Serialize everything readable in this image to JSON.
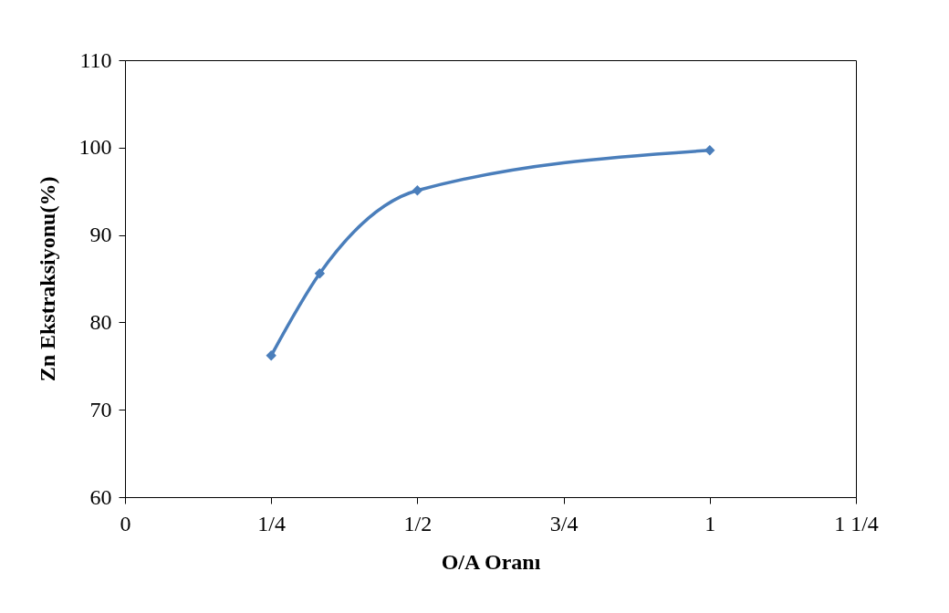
{
  "chart_data": {
    "type": "line",
    "xlabel": "O/A Oranı",
    "ylabel": "Zn Ekstraksiyonu(%)",
    "x": [
      0.25,
      0.333,
      0.5,
      1
    ],
    "series": [
      {
        "color": "#4a7ebb",
        "values": [
          76.2,
          85.6,
          95.1,
          99.7
        ]
      }
    ],
    "xlim": [
      0,
      1.25
    ],
    "xticks": [
      0,
      {
        "value": 0.25,
        "label": "1/4"
      },
      {
        "value": 0.5,
        "label": "1/2"
      },
      {
        "value": 0.75,
        "label": "3/4"
      },
      1,
      {
        "value": 1.25,
        "label": "1 1/4"
      }
    ],
    "ylim": [
      60,
      110
    ],
    "yticks": [
      60,
      70,
      80,
      90,
      100,
      110
    ],
    "marker": "diamond",
    "line_style": "solid"
  }
}
